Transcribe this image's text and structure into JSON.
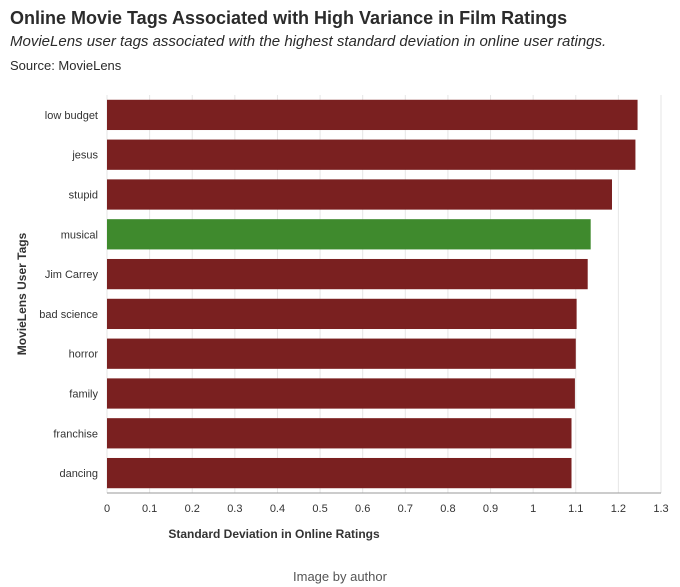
{
  "title": "Online Movie Tags Associated with High Variance in Film Ratings",
  "subtitle": "MovieLens user tags associated with the highest standard deviation in online user ratings.",
  "source": "Source: MovieLens",
  "caption": "Image by author",
  "colors": {
    "default": "#7a2020",
    "highlight": "#3f8a2d",
    "grid": "#e6e6e6"
  },
  "chart_data": {
    "type": "bar",
    "orientation": "horizontal",
    "xlabel": "Standard Deviation in Online Ratings",
    "ylabel": "MovieLens User Tags",
    "xlim": [
      0,
      1.3
    ],
    "xticks": [
      "0",
      "0.1",
      "0.2",
      "0.3",
      "0.4",
      "0.5",
      "0.6",
      "0.7",
      "0.8",
      "0.9",
      "1",
      "1.1",
      "1.2",
      "1.3"
    ],
    "grid": true,
    "categories": [
      "low budget",
      "jesus",
      "stupid",
      "musical",
      "Jim Carrey",
      "bad science",
      "horror",
      "family",
      "franchise",
      "dancing"
    ],
    "values": [
      1.245,
      1.24,
      1.185,
      1.135,
      1.128,
      1.102,
      1.1,
      1.098,
      1.09,
      1.09
    ],
    "highlighted": [
      "musical"
    ]
  }
}
